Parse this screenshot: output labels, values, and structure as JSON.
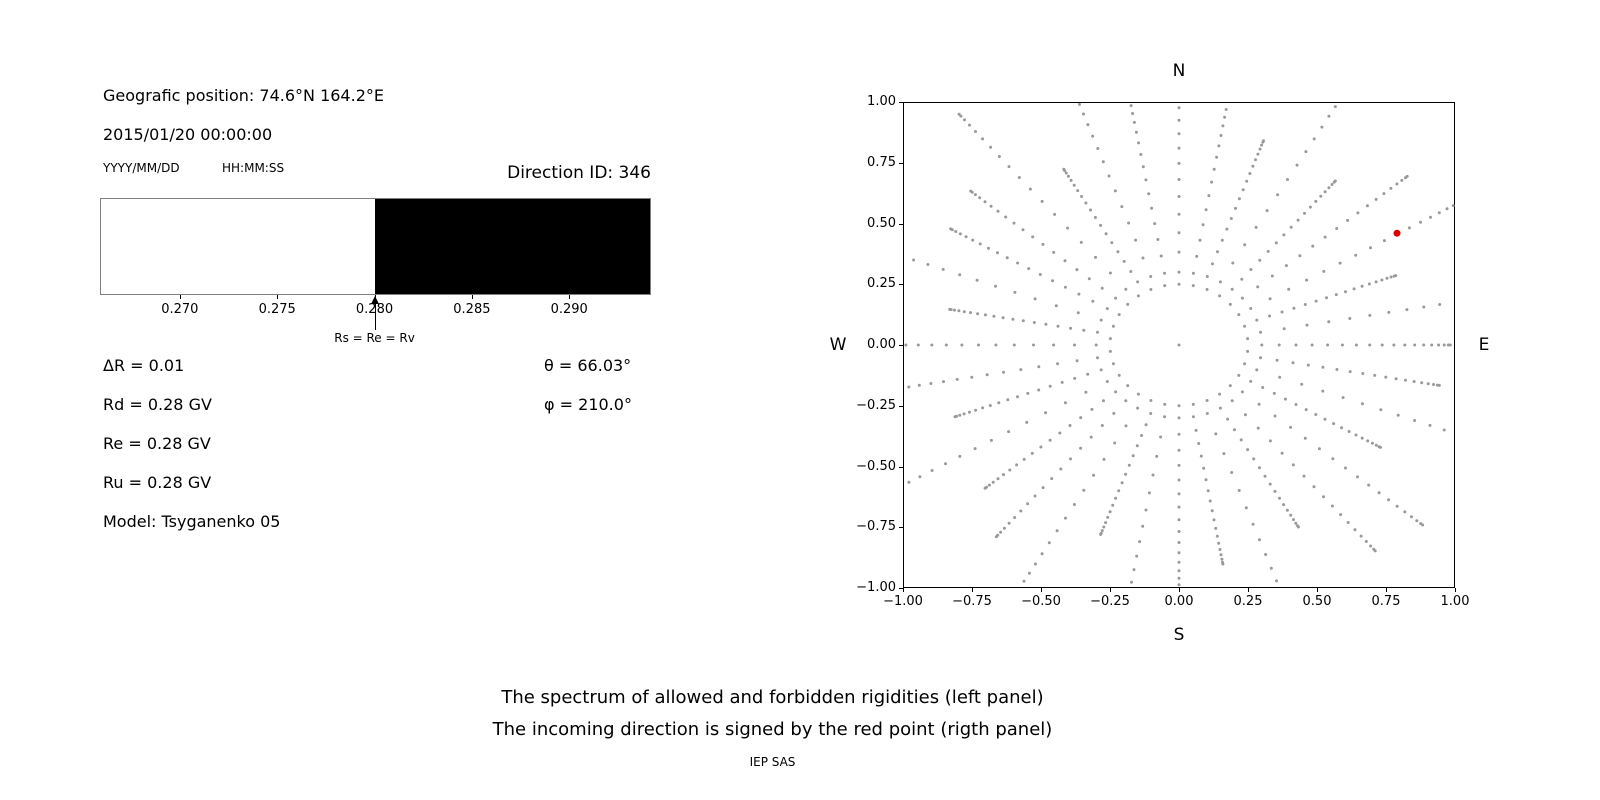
{
  "header": {
    "geographic_position": "Geografic position: 74.6°N 164.2°E",
    "datetime": "2015/01/20 00:00:00",
    "date_format_label": "YYYY/MM/DD",
    "time_format_label": "HH:MM:SS",
    "direction_id": "Direction ID: 346"
  },
  "parameters": {
    "left": [
      "ΔR = 0.01",
      "Rd = 0.28 GV",
      "Re = 0.28 GV",
      "Ru = 0.28 GV",
      "Model: Tsyganenko 05"
    ],
    "right": [
      "θ = 66.03°",
      "φ = 210.0°"
    ]
  },
  "captions": {
    "line1": "The spectrum of allowed and forbidden rigidities (left panel)",
    "line2": "The incoming direction is signed by the red point (rigth panel)",
    "credit": "IEP SAS"
  },
  "chart_data": [
    {
      "type": "bar",
      "panel": "left",
      "x_range": [
        0.2659,
        0.2942
      ],
      "x_ticks": [
        0.27,
        0.275,
        0.28,
        0.285,
        0.29
      ],
      "segments": [
        {
          "from": 0.2659,
          "to": 0.28,
          "state": "allowed",
          "color": "#ffffff"
        },
        {
          "from": 0.28,
          "to": 0.2942,
          "state": "forbidden",
          "color": "#000000"
        }
      ],
      "annotation": {
        "x": 0.28,
        "label": "Rs = Re = Rv"
      },
      "border_color": "#808080"
    },
    {
      "type": "scatter",
      "panel": "right",
      "compass_labels": {
        "top": "N",
        "bottom": "S",
        "left": "W",
        "right": "E"
      },
      "xlim": [
        -1.0,
        1.0
      ],
      "ylim": [
        -1.0,
        1.0
      ],
      "x_ticks": [
        -1.0,
        -0.75,
        -0.5,
        -0.25,
        0.0,
        0.25,
        0.5,
        0.75,
        1.0
      ],
      "y_ticks": [
        -1.0,
        -0.75,
        -0.5,
        -0.25,
        0.0,
        0.25,
        0.5,
        0.75,
        1.0
      ],
      "grid": false,
      "axis_color": "#000000",
      "dots": {
        "description": "Gray dot pattern: ring of dots at radius 0.25 around origin plus 36 radial spokes of dots from r=0.30 outward; dot spacing compresses toward each spoke tip; clipped to the axes box.",
        "color": "#999999",
        "dot_radius_px": 1.5,
        "ring_radius": 0.25,
        "ring_dots": 30,
        "center_dot": true,
        "num_spokes": 36,
        "spoke_r_start": 0.3,
        "spoke_r_end": 1.05,
        "dots_per_spoke": 18,
        "end_compression": 1.6,
        "end_variation": 0.22,
        "variation_freq": 2.4,
        "variation_phase": 0.7,
        "clip": 0.995
      },
      "red_point": {
        "x": 0.79,
        "y": 0.46,
        "color": "#e00000",
        "radius_px": 3.5
      }
    }
  ]
}
